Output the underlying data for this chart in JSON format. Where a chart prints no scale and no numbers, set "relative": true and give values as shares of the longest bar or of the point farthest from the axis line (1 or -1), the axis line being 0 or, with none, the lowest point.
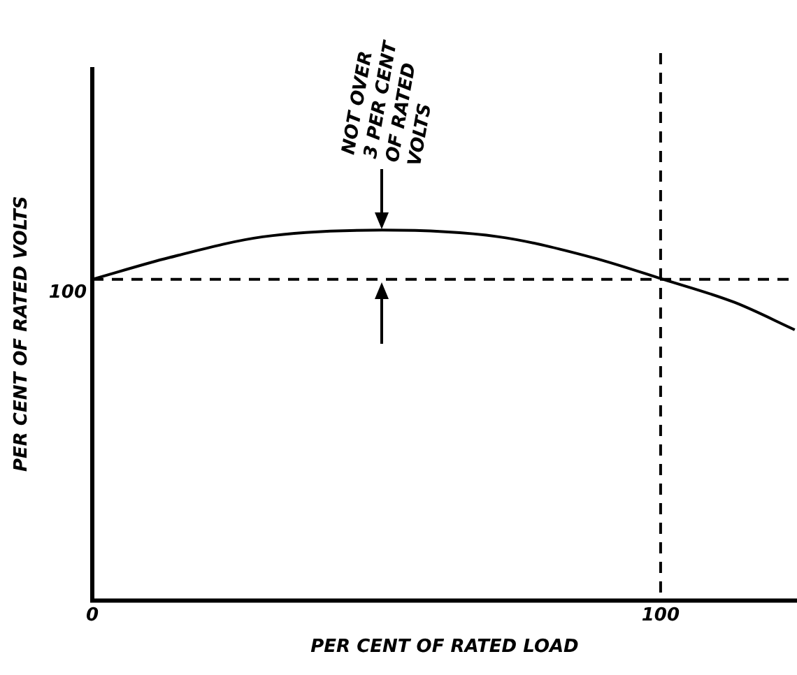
{
  "chart_data": {
    "type": "line",
    "xlabel": "PER CENT OF RATED LOAD",
    "ylabel": "PER CENT OF RATED VOLTS",
    "x": [
      0,
      13.6,
      30,
      51,
      71.5,
      88,
      100.5,
      113,
      123.6
    ],
    "series": [
      {
        "color": "#000000",
        "values": [
          0.867,
          0.926,
          0.982,
          1,
          0.982,
          0.926,
          0.867,
          0.805,
          0.731
        ]
      }
    ],
    "relative": true,
    "xlim": [
      0,
      124
    ],
    "xticks": [
      0,
      100
    ],
    "ref_lines": [
      {
        "axis": "y",
        "value": 0.867,
        "line_style": "dashed",
        "color": "#000000"
      },
      {
        "axis": "x",
        "value": 100,
        "line_style": "dashed",
        "color": "#000000"
      }
    ],
    "annotations": [
      "100",
      {
        "text": "NOT OVER\n3 PER CENT\nOF RATED\nVOLTS",
        "x": 51,
        "y": 1
      }
    ],
    "grid": false,
    "legend": false,
    "marker": "none",
    "line_style": "solid"
  }
}
